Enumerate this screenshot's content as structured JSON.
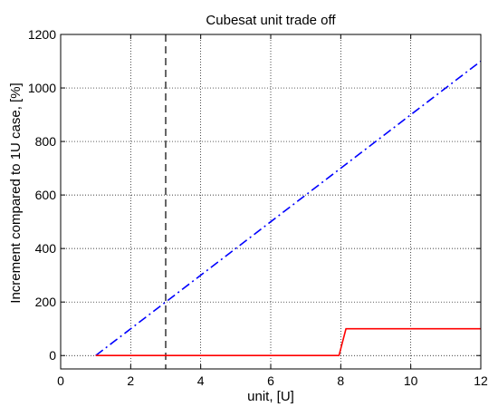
{
  "chart_data": {
    "type": "line",
    "title": "Cubesat unit trade off",
    "xlabel": "unit, [U]",
    "ylabel": "Increment compared to 1U case, [%]",
    "xlim": [
      0,
      12
    ],
    "ylim": [
      -50,
      1200
    ],
    "xticks": [
      0,
      2,
      4,
      6,
      8,
      10,
      12
    ],
    "yticks": [
      0,
      200,
      400,
      600,
      800,
      1000,
      1200
    ],
    "grid": true,
    "series": [
      {
        "style": "dash-dot",
        "color": "#0000ff",
        "x": [
          1,
          12
        ],
        "y": [
          0,
          1100
        ]
      },
      {
        "style": "solid",
        "color": "#ff0000",
        "x": [
          1,
          7.95,
          8.15,
          12
        ],
        "y": [
          0,
          0,
          100,
          100
        ]
      }
    ],
    "vlines": [
      {
        "x": 3,
        "style": "dashed",
        "color": "#666666"
      }
    ]
  }
}
